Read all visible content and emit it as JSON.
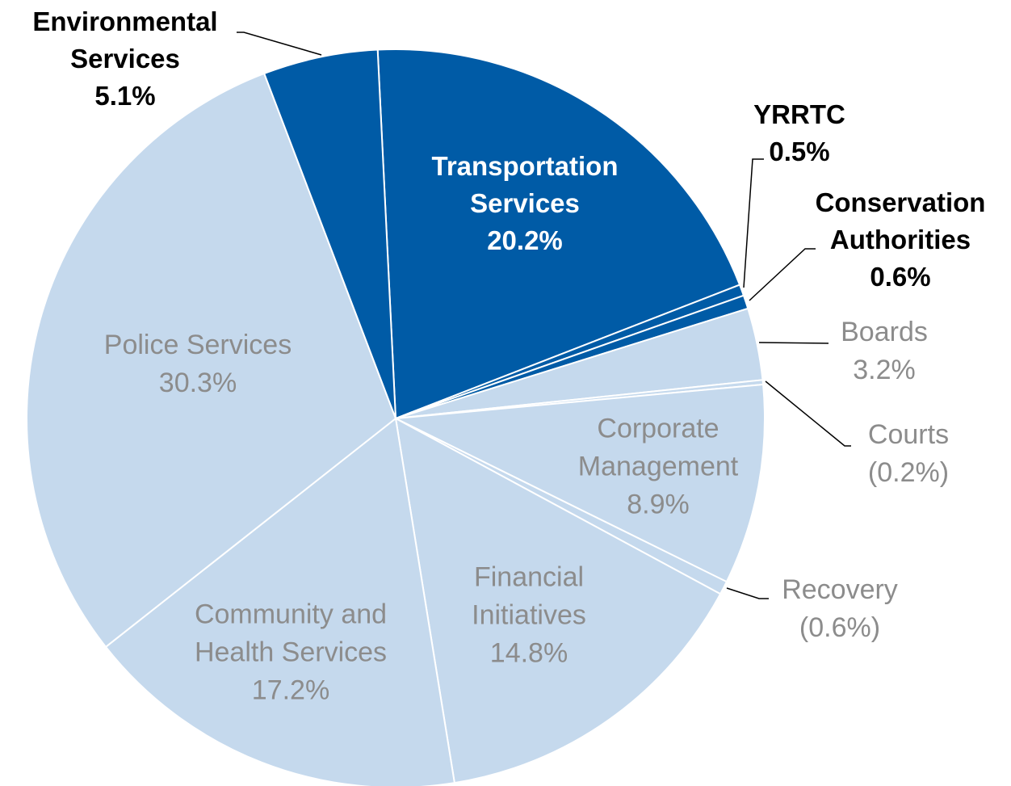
{
  "chart_data": {
    "type": "pie",
    "categories": [
      "Transportation\nServices",
      "YRRTC",
      "Conservation\nAuthorities",
      "Boards",
      "Courts",
      "Corporate\nManagement",
      "Recovery",
      "Financial\nInitiatives",
      "Community and\nHealth Services",
      "Police Services",
      "Environmental\nServices"
    ],
    "values": [
      20.2,
      0.5,
      0.6,
      3.2,
      -0.2,
      8.9,
      -0.6,
      14.8,
      17.2,
      30.3,
      5.1
    ],
    "value_labels": [
      "20.2%",
      "0.5%",
      "0.6%",
      "3.2%",
      "(0.2%)",
      "8.9%",
      "(0.6%)",
      "14.8%",
      "17.2%",
      "30.3%",
      "5.1%"
    ],
    "colors": [
      "#005ba6",
      "#005ba6",
      "#005ba6",
      "#c5d9ed",
      "#c5d9ed",
      "#c5d9ed",
      "#c5d9ed",
      "#c5d9ed",
      "#c5d9ed",
      "#c5d9ed",
      "#005ba6"
    ]
  }
}
